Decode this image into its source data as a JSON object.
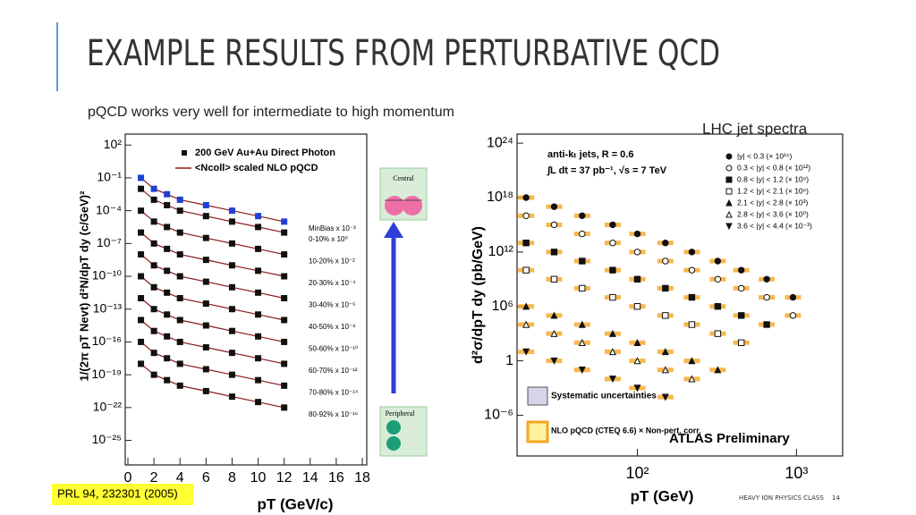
{
  "slide": {
    "title": "EXAMPLE RESULTS FROM PERTURBATIVE QCD",
    "subtitle": "pQCD works very well for intermediate to high momentum",
    "caption": "LHC jet spectra",
    "footer": "HEAVY ION PHYSICS CLASS",
    "page": "14"
  },
  "chart_data": [
    {
      "type": "scatter",
      "xscale": "linear",
      "yscale": "log",
      "xlabel": "pT (GeV/c)",
      "ylabel": "1/(2π pT Nevt) d²N/dpT dy (c/GeV)²",
      "legend": [
        "200 GeV Au+Au Direct Photon",
        "<Ncoll> scaled NLO pQCD"
      ],
      "side_labels": [
        "Central",
        "Peripheral"
      ],
      "reference": "PRL 94, 232301 (2005)",
      "xlim": [
        0,
        18
      ],
      "xticks": [
        0,
        2,
        4,
        6,
        8,
        10,
        12,
        14,
        16,
        18
      ],
      "ylim": [
        1e-27,
        1000.0
      ],
      "yticks": [
        {
          "value": 100.0,
          "label": "10²"
        },
        {
          "value": 0.1,
          "label": "10⁻¹"
        },
        {
          "value": 0.0001,
          "label": "10⁻⁴"
        },
        {
          "value": 1e-07,
          "label": "10⁻⁷"
        },
        {
          "value": 1e-10,
          "label": "10⁻¹⁰"
        },
        {
          "value": 1e-13,
          "label": "10⁻¹³"
        },
        {
          "value": 1e-16,
          "label": "10⁻¹⁶"
        },
        {
          "value": 1e-19,
          "label": "10⁻¹⁹"
        },
        {
          "value": 1e-22,
          "label": "10⁻²²"
        },
        {
          "value": 1e-25,
          "label": "10⁻²⁵"
        }
      ],
      "x": [
        1,
        2,
        3,
        4,
        6,
        8,
        10,
        12
      ],
      "line_color": "#8b1a1a",
      "series": [
        {
          "name": "MinBias x 10⁻³",
          "color": "#1f3fd6",
          "marker": "square",
          "values": [
            0.1,
            0.01,
            0.0032,
            0.001,
            0.00032,
            0.0001,
            3.2e-05,
            1e-05
          ]
        },
        {
          "name": "0-10%  x 10⁰",
          "color": "#111111",
          "marker": "square",
          "values": [
            0.01,
            0.001,
            0.00032,
            0.0001,
            3.2e-05,
            1e-05,
            3.2e-06,
            1e-06
          ]
        },
        {
          "name": "10-20% x 10⁻²",
          "color": "#111111",
          "marker": "square",
          "values": [
            0.0001,
            1e-05,
            3.2e-06,
            1e-06,
            3.2e-07,
            1e-07,
            3.2e-08,
            1e-08
          ]
        },
        {
          "name": "20-30% x 10⁻⁴",
          "color": "#111111",
          "marker": "square",
          "values": [
            1e-06,
            1e-07,
            3.2e-08,
            1e-08,
            3.2e-09,
            1e-09,
            3.2e-10,
            1e-10
          ]
        },
        {
          "name": "30-40% x 10⁻⁶",
          "color": "#111111",
          "marker": "square",
          "values": [
            1e-08,
            1e-09,
            3.2e-10,
            1e-10,
            3.2e-11,
            1e-11,
            3.2e-12,
            1e-12
          ]
        },
        {
          "name": "40-50% x 10⁻⁸",
          "color": "#111111",
          "marker": "square",
          "values": [
            1e-10,
            1e-11,
            3.2e-12,
            1e-12,
            3.2e-13,
            1e-13,
            3.2e-14,
            1e-14
          ]
        },
        {
          "name": "50-60% x 10⁻¹⁰",
          "color": "#111111",
          "marker": "square",
          "values": [
            1e-12,
            1e-13,
            3.2e-14,
            1e-14,
            3.2e-15,
            1e-15,
            3.2e-16,
            1e-16
          ]
        },
        {
          "name": "60-70% x 10⁻¹²",
          "color": "#111111",
          "marker": "square",
          "values": [
            1e-14,
            1e-15,
            3.2e-16,
            1e-16,
            3.2e-17,
            1e-17,
            3.2e-18,
            1e-18
          ]
        },
        {
          "name": "70-80% x 10⁻¹⁴",
          "color": "#111111",
          "marker": "square",
          "values": [
            1e-16,
            1e-17,
            3.2e-18,
            1e-18,
            3.2e-19,
            1e-19,
            3.2e-20,
            1e-20
          ]
        },
        {
          "name": "80-92% x 10⁻¹⁶",
          "color": "#111111",
          "marker": "square",
          "values": [
            1e-18,
            1e-19,
            3.2e-20,
            1e-20,
            3.2e-21,
            1e-21,
            3.2e-22,
            1e-22
          ]
        }
      ]
    },
    {
      "type": "scatter",
      "xscale": "log",
      "yscale": "log",
      "xlabel": "pT (GeV)",
      "ylabel": "d²σ/dpT dy (pb/GeV)",
      "annotations": [
        "anti-kₜ jets, R = 0.6",
        "∫L dt = 37 pb⁻¹, √s = 7 TeV",
        "ATLAS Preliminary"
      ],
      "band_legend": [
        "Systematic uncertainties",
        "NLO pQCD (CTEQ 6.6) × Non-pert. corr."
      ],
      "band_color": "#f5a623",
      "xlim": [
        18,
        1900
      ],
      "xticks": [
        {
          "value": 100,
          "label": "10²"
        },
        {
          "value": 1000,
          "label": "10³"
        }
      ],
      "ylim": [
        1e-10,
        1e+25
      ],
      "yticks": [
        {
          "value": 1e+24,
          "label": "10²⁴"
        },
        {
          "value": 1e+18,
          "label": "10¹⁸"
        },
        {
          "value": 1000000000000.0,
          "label": "10¹²"
        },
        {
          "value": 1000000.0,
          "label": "10⁶"
        },
        1,
        {
          "value": 1e-06,
          "label": "10⁻⁶"
        }
      ],
      "x": [
        20,
        30,
        45,
        70,
        100,
        150,
        220,
        320,
        450,
        650,
        950
      ],
      "series": [
        {
          "name": "|y| < 0.3 (× 10¹⁵)",
          "color": "#111111",
          "marker": "circle",
          "values": [
            1e+18,
            1e+17,
            1e+16,
            1000000000000000.0,
            100000000000000.0,
            10000000000000.0,
            1000000000000.0,
            100000000000.0,
            10000000000.0,
            1000000000.0,
            10000000.0
          ]
        },
        {
          "name": "0.3 < |y| < 0.8 (× 10¹²)",
          "color": "#111111",
          "marker": "circle-open",
          "values": [
            1e+16,
            1000000000000000.0,
            100000000000000.0,
            10000000000000.0,
            1000000000000.0,
            100000000000.0,
            10000000000.0,
            1000000000.0,
            100000000.0,
            10000000.0,
            100000.0
          ]
        },
        {
          "name": "0.8 < |y| < 1.2 (× 10⁹)",
          "color": "#111111",
          "marker": "square",
          "values": [
            10000000000000.0,
            1000000000000.0,
            100000000000.0,
            10000000000.0,
            1000000000.0,
            100000000.0,
            10000000.0,
            1000000.0,
            100000.0,
            10000.0,
            null
          ]
        },
        {
          "name": "1.2 < |y| < 2.1 (× 10⁶)",
          "color": "#111111",
          "marker": "square-open",
          "values": [
            10000000000.0,
            1000000000.0,
            100000000.0,
            10000000.0,
            1000000.0,
            100000.0,
            10000.0,
            1000.0,
            100.0,
            null,
            null
          ]
        },
        {
          "name": "2.1 < |y| < 2.8 (× 10³)",
          "color": "#111111",
          "marker": "triangle",
          "values": [
            1000000.0,
            100000.0,
            10000.0,
            1000.0,
            100.0,
            10.0,
            1,
            0.1,
            null,
            null,
            null
          ]
        },
        {
          "name": "2.8 < |y| < 3.6 (× 10⁰)",
          "color": "#111111",
          "marker": "triangle-open",
          "values": [
            10000.0,
            1000.0,
            100.0,
            10.0,
            1,
            0.1,
            0.01,
            null,
            null,
            null,
            null
          ]
        },
        {
          "name": "3.6 < |y| < 4.4 (× 10⁻³)",
          "color": "#111111",
          "marker": "triangle-down",
          "values": [
            10.0,
            1,
            0.1,
            0.01,
            0.001,
            0.0001,
            null,
            null,
            null,
            null,
            null
          ]
        }
      ]
    }
  ]
}
